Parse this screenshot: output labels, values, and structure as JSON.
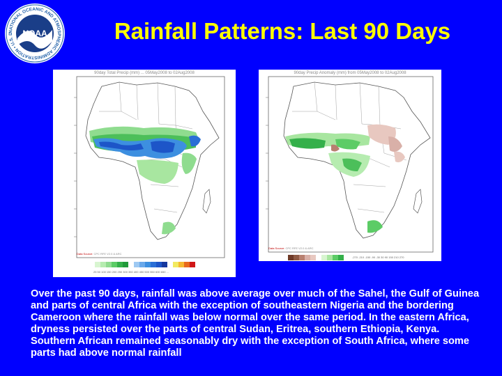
{
  "slide": {
    "title": "Rainfall Patterns: Last 90 Days",
    "body": "Over the past 90 days, rainfall was above average over much of the Sahel, the Gulf of Guinea and parts of central Africa with the exception of southeastern Nigeria and the bordering Cameroon where the rainfall was below normal over the same period. In the eastern Africa, dryness persisted over the parts of central Sudan, Eritrea, southern Ethiopia, Kenya. Southern African remained seasonably dry with the exception of South Africa, where some parts had above normal rainfall"
  },
  "logo": {
    "center_text": "NOAA",
    "ring_text": "NATIONAL OCEANIC AND ATMOSPHERIC ADMINISTRATION • U.S. DEPARTMENT OF COMMERCE",
    "ring_color": "#1f5fa8",
    "center_color": "#1a3e88"
  },
  "left_map": {
    "header": "90day Total Precip (mm) ... 05May2008 to 02Aug2008",
    "credit_red": "Data Source:",
    "credit_rest": "CPC RFE V2.0 & ARC",
    "legend_labels": "25 50 100 150 200 250 300 350 400 450 500 550 600 650 ..."
  },
  "right_map": {
    "header": "90day Precip Anomaly (mm) from 05May2008 to 02Aug2008",
    "credit_red": "Data Source:",
    "credit_rest": "CPC RFE V2.0 & ARC",
    "legend_labels": "-270 -210 -150 -90 -30 30 90 150 210 270"
  },
  "colors": {
    "background": "#0000ff",
    "title": "#ffff00",
    "body_text": "#ffffff"
  }
}
